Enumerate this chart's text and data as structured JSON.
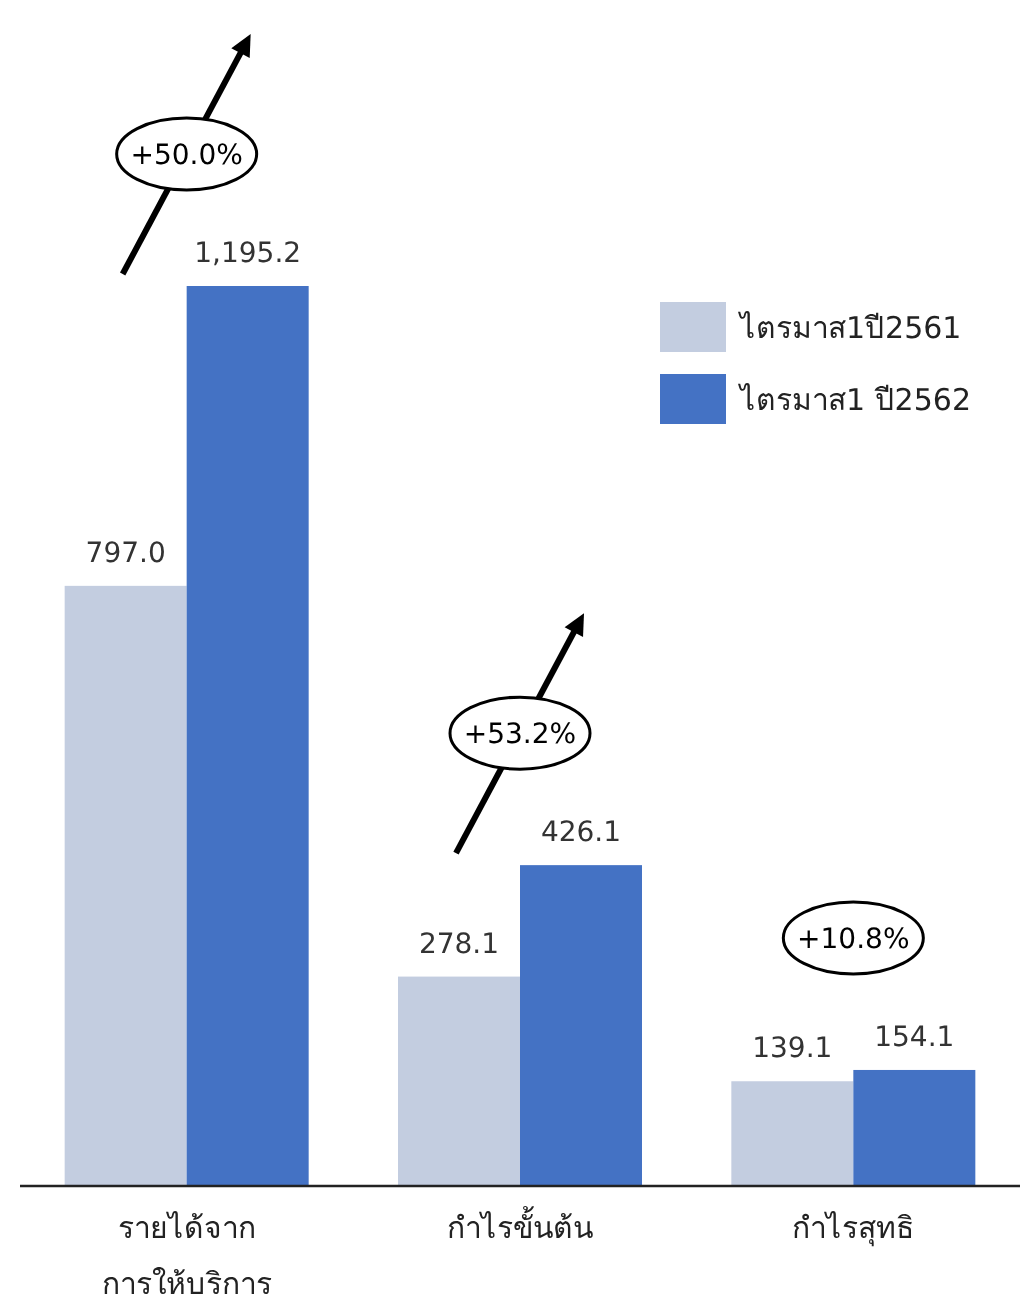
{
  "chart_data": {
    "type": "bar",
    "categories": [
      "รายได้จาก การให้บริการ",
      "กำไรขั้นต้น",
      "กำไรสุทธิ"
    ],
    "series": [
      {
        "name": "ไตรมาส1ปี2561",
        "color": "#c3cde0",
        "values": [
          797.0,
          278.1,
          139.1
        ],
        "value_labels": [
          "797.0",
          "278.1",
          "139.1"
        ]
      },
      {
        "name": "ไตรมาส1 ปี2562",
        "color": "#4472c4",
        "values": [
          1195.2,
          426.1,
          154.1
        ],
        "value_labels": [
          "1,195.2",
          "426.1",
          "154.1"
        ]
      }
    ],
    "legend": "top right",
    "annotations": [
      "+50.0%",
      "+53.2%",
      "+10.8%"
    ]
  }
}
